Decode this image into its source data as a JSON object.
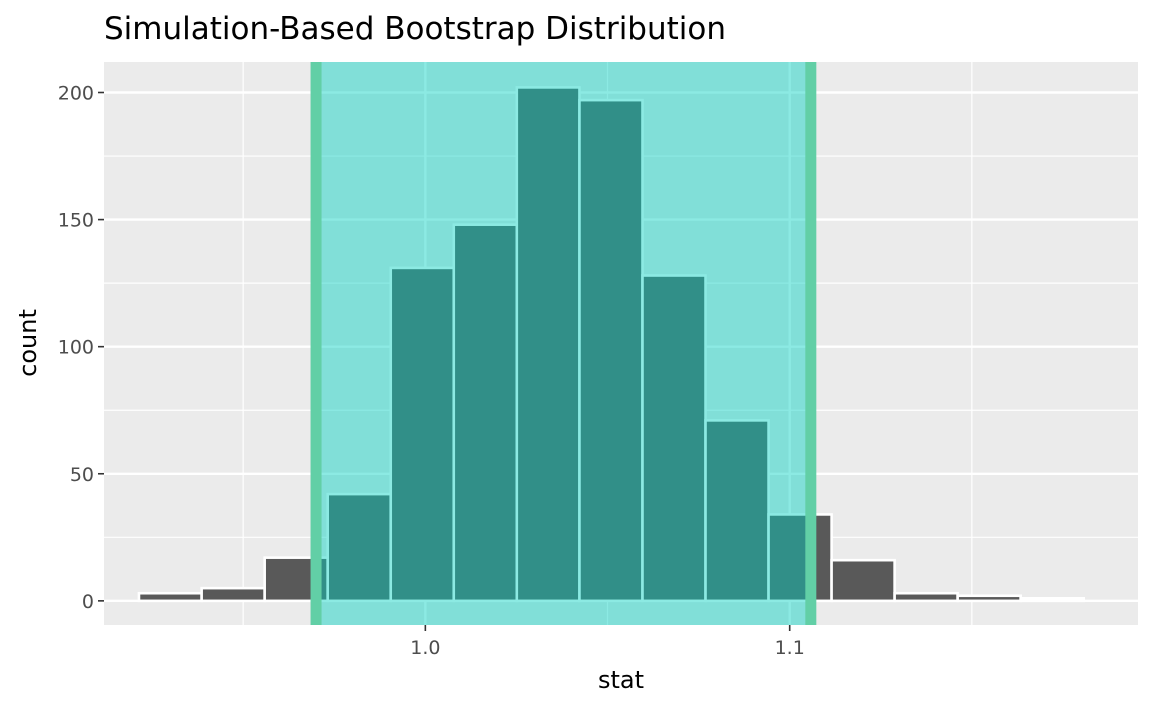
{
  "chart_data": {
    "type": "bar",
    "title": "Simulation-Based Bootstrap Distribution",
    "xlabel": "stat",
    "ylabel": "count",
    "xlim": [
      0.9118,
      1.1956
    ],
    "ylim": [
      -9.5,
      212
    ],
    "x_ticks": [
      1.0,
      1.1
    ],
    "x_tick_labels": [
      "1.0",
      "1.1"
    ],
    "y_ticks": [
      0,
      50,
      100,
      150,
      200
    ],
    "y_tick_labels": [
      "0",
      "50",
      "100",
      "150",
      "200"
    ],
    "grid": true,
    "bins": [
      {
        "x0": 0.9214,
        "x1": 0.9386,
        "count": 3
      },
      {
        "x0": 0.9386,
        "x1": 0.9559,
        "count": 5
      },
      {
        "x0": 0.9559,
        "x1": 0.9732,
        "count": 17
      },
      {
        "x0": 0.9732,
        "x1": 0.9905,
        "count": 42
      },
      {
        "x0": 0.9905,
        "x1": 1.0078,
        "count": 131
      },
      {
        "x0": 1.0078,
        "x1": 1.0251,
        "count": 148
      },
      {
        "x0": 1.0251,
        "x1": 1.0423,
        "count": 202
      },
      {
        "x0": 1.0423,
        "x1": 1.0596,
        "count": 197
      },
      {
        "x0": 1.0596,
        "x1": 1.0769,
        "count": 128
      },
      {
        "x0": 1.0769,
        "x1": 1.0942,
        "count": 71
      },
      {
        "x0": 1.0942,
        "x1": 1.1115,
        "count": 34
      },
      {
        "x0": 1.1115,
        "x1": 1.1288,
        "count": 16
      },
      {
        "x0": 1.1288,
        "x1": 1.1461,
        "count": 3
      },
      {
        "x0": 1.1461,
        "x1": 1.1634,
        "count": 2
      },
      {
        "x0": 1.1634,
        "x1": 1.1807,
        "count": 1
      }
    ],
    "confidence_interval": {
      "lower": 0.97,
      "upper": 1.1058
    },
    "colors": {
      "bar_fill": "#595959",
      "bar_outline": "#ffffff",
      "shade_fill": "#00d1c0",
      "shade_line": "#62cfa6",
      "panel_background": "#ebebeb",
      "grid": "#ffffff"
    }
  }
}
